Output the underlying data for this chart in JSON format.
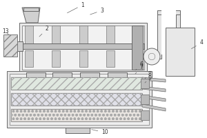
{
  "bg_color": "#ffffff",
  "line_color": "#666666",
  "lw": 0.7,
  "figsize": [
    3.0,
    2.0
  ],
  "dpi": 100,
  "label_fs": 5.5,
  "label_color": "#333333",
  "body_fc": "#e8e8e8",
  "inner_fc": "#f2f2f2",
  "rib_fc": "#cccccc",
  "bar_fc": "#c0c0c0",
  "foot_fc": "#d0d0d0",
  "lower_fc": "#e4e4e4",
  "mesh1_fc": "#e0e8e0",
  "mesh2_fc": "#e0e0e8",
  "mesh3_fc": "#e8e4e0",
  "vib_fc": "#b0b0b0",
  "motor_fc": "#d8d8d8",
  "pipe_fc": "#e4e4e4",
  "hopper_fc": "#d0d0d0",
  "collector_fc": "#e8e8e8",
  "spout_fc": "#c8c8c8"
}
